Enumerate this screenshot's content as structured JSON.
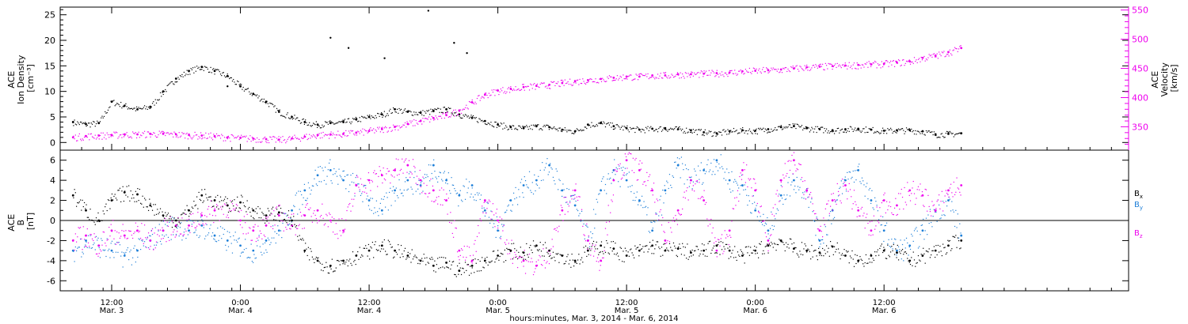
{
  "colors": {
    "black": "#000000",
    "magenta": "#ee00ee",
    "blue": "#1e7fd8"
  },
  "chart_data": [
    {
      "type": "scatter",
      "panel": "top",
      "left_axis_label": [
        "ACE",
        "Ion Density",
        "[cm⁻³]"
      ],
      "right_axis_label": [
        "ACE",
        "Velocity",
        "[km/s]"
      ],
      "ylim_left": [
        -1.5,
        26.5
      ],
      "ylim_right": [
        310,
        555
      ],
      "yticks_left": [
        "0",
        "5",
        "10",
        "15",
        "20",
        "25"
      ],
      "yticks_right": [
        "350",
        "400",
        "450",
        "500",
        "550"
      ],
      "series": [
        {
          "axis": "left",
          "color": "black",
          "x": [
            2.85,
            2.9,
            2.95,
            3.0,
            3.05,
            3.1,
            3.15,
            3.2,
            3.25,
            3.3,
            3.35,
            3.4,
            3.45,
            3.5,
            3.55,
            3.6,
            3.65,
            3.7,
            3.75,
            3.8,
            3.85,
            3.9,
            3.95,
            4.0,
            4.05,
            4.1,
            4.15,
            4.2,
            4.25,
            4.3,
            4.35,
            4.4,
            4.45,
            4.5,
            4.55,
            4.6,
            4.65,
            4.7,
            4.75,
            4.8,
            4.85,
            4.9,
            4.95,
            5.0,
            5.05,
            5.1,
            5.15,
            5.2,
            5.25,
            5.3,
            5.35,
            5.4,
            5.45,
            5.5,
            5.55,
            5.6,
            5.65,
            5.7,
            5.75,
            5.8,
            5.85,
            5.9,
            5.95,
            6.0,
            6.05,
            6.1,
            6.15,
            6.2,
            6.25,
            6.3
          ],
          "y": [
            4.0,
            3.6,
            3.8,
            8.0,
            7.2,
            6.5,
            7.0,
            10.0,
            12.5,
            14.0,
            14.8,
            14.0,
            13.0,
            11.0,
            9.5,
            8.0,
            6.0,
            5.0,
            4.0,
            3.5,
            3.8,
            4.0,
            4.5,
            5.0,
            5.5,
            6.5,
            6.0,
            5.8,
            6.2,
            6.5,
            5.5,
            4.8,
            4.2,
            3.5,
            3.0,
            2.8,
            3.2,
            3.0,
            2.5,
            2.2,
            3.5,
            3.8,
            3.2,
            2.8,
            2.5,
            2.7,
            2.8,
            2.6,
            2.4,
            2.0,
            1.8,
            2.2,
            2.4,
            2.3,
            2.6,
            3.0,
            3.2,
            2.8,
            2.6,
            2.4,
            2.6,
            2.7,
            2.5,
            2.3,
            2.4,
            2.4,
            2.2,
            1.6,
            1.7,
            1.8
          ]
        },
        {
          "axis": "right",
          "color": "magenta",
          "x": [
            2.85,
            2.9,
            2.95,
            3.0,
            3.05,
            3.1,
            3.15,
            3.2,
            3.25,
            3.3,
            3.35,
            3.4,
            3.45,
            3.5,
            3.55,
            3.6,
            3.65,
            3.7,
            3.75,
            3.8,
            3.85,
            3.9,
            3.95,
            4.0,
            4.05,
            4.1,
            4.15,
            4.2,
            4.25,
            4.3,
            4.35,
            4.4,
            4.45,
            4.5,
            4.55,
            4.6,
            4.65,
            4.7,
            4.75,
            4.8,
            4.85,
            4.9,
            4.95,
            5.0,
            5.05,
            5.1,
            5.15,
            5.2,
            5.25,
            5.3,
            5.35,
            5.4,
            5.45,
            5.5,
            5.55,
            5.6,
            5.65,
            5.7,
            5.75,
            5.8,
            5.85,
            5.9,
            5.95,
            6.0,
            6.05,
            6.1,
            6.15,
            6.2,
            6.25,
            6.3
          ],
          "y": [
            332,
            334,
            335,
            336,
            337,
            337,
            338,
            338,
            337,
            336,
            335,
            334,
            332,
            331,
            330,
            329,
            328,
            330,
            333,
            336,
            337,
            338,
            340,
            343,
            346,
            350,
            355,
            360,
            365,
            370,
            378,
            392,
            405,
            412,
            415,
            418,
            420,
            422,
            425,
            428,
            430,
            432,
            434,
            436,
            436,
            438,
            438,
            440,
            440,
            441,
            442,
            443,
            445,
            446,
            447,
            448,
            450,
            452,
            453,
            454,
            455,
            456,
            457,
            458,
            460,
            462,
            468,
            472,
            478,
            485
          ]
        }
      ],
      "outliers": [
        {
          "x": 3.85,
          "y": 20.5
        },
        {
          "x": 3.92,
          "y": 18.5
        },
        {
          "x": 4.23,
          "y": 25.8
        },
        {
          "x": 4.33,
          "y": 19.5
        },
        {
          "x": 4.38,
          "y": 17.5
        },
        {
          "x": 4.06,
          "y": 16.5
        },
        {
          "x": 3.45,
          "y": 11.0
        }
      ]
    },
    {
      "type": "scatter",
      "panel": "bottom",
      "left_axis_label": [
        "ACE",
        "B",
        "[nT]"
      ],
      "ylim": [
        -7,
        7
      ],
      "yticks": [
        "-6",
        "-4",
        "-2",
        "0",
        "2",
        "4",
        "6"
      ],
      "legend": [
        "B",
        "B",
        "B"
      ],
      "legend_subscripts": [
        "x",
        "y",
        "z"
      ],
      "series": [
        {
          "name_sub": "x",
          "color": "black",
          "x": [
            2.85,
            2.9,
            2.95,
            3.0,
            3.05,
            3.1,
            3.15,
            3.2,
            3.25,
            3.3,
            3.35,
            3.4,
            3.45,
            3.5,
            3.55,
            3.6,
            3.65,
            3.7,
            3.75,
            3.8,
            3.85,
            3.9,
            3.95,
            4.0,
            4.05,
            4.1,
            4.15,
            4.2,
            4.25,
            4.3,
            4.35,
            4.4,
            4.45,
            4.5,
            4.55,
            4.6,
            4.65,
            4.7,
            4.75,
            4.8,
            4.85,
            4.9,
            4.95,
            5.0,
            5.05,
            5.1,
            5.15,
            5.2,
            5.25,
            5.3,
            5.35,
            5.4,
            5.45,
            5.5,
            5.55,
            5.6,
            5.65,
            5.7,
            5.75,
            5.8,
            5.85,
            5.9,
            5.95,
            6.0,
            6.05,
            6.1,
            6.15,
            6.2,
            6.25,
            6.3
          ],
          "y": [
            2.5,
            1.0,
            0.0,
            2.0,
            2.8,
            2.6,
            1.5,
            0.5,
            0.0,
            1.0,
            2.5,
            2.0,
            1.5,
            1.8,
            1.0,
            0.5,
            0.8,
            0.0,
            -3.0,
            -4.0,
            -4.5,
            -4.0,
            -3.5,
            -3.0,
            -2.5,
            -3.0,
            -3.5,
            -4.0,
            -4.5,
            -4.2,
            -5.0,
            -4.5,
            -4.0,
            -3.5,
            -3.0,
            -3.2,
            -2.5,
            -3.0,
            -3.5,
            -4.0,
            -3.0,
            -2.5,
            -2.8,
            -3.5,
            -3.0,
            -2.5,
            -3.0,
            -2.8,
            -3.2,
            -3.0,
            -2.5,
            -3.0,
            -3.5,
            -3.0,
            -2.5,
            -2.0,
            -2.8,
            -3.0,
            -3.2,
            -2.6,
            -3.5,
            -4.0,
            -3.5,
            -3.0,
            -3.2,
            -4.0,
            -3.5,
            -3.0,
            -2.5,
            -2.0
          ]
        },
        {
          "name_sub": "y",
          "color": "blue",
          "x": [
            2.85,
            2.9,
            2.95,
            3.0,
            3.05,
            3.1,
            3.15,
            3.2,
            3.25,
            3.3,
            3.35,
            3.4,
            3.45,
            3.5,
            3.55,
            3.6,
            3.65,
            3.7,
            3.75,
            3.8,
            3.85,
            3.9,
            3.95,
            4.0,
            4.05,
            4.1,
            4.15,
            4.2,
            4.25,
            4.3,
            4.35,
            4.4,
            4.45,
            4.5,
            4.55,
            4.6,
            4.65,
            4.7,
            4.75,
            4.8,
            4.85,
            4.9,
            4.95,
            5.0,
            5.05,
            5.1,
            5.15,
            5.2,
            5.25,
            5.3,
            5.35,
            5.4,
            5.45,
            5.5,
            5.55,
            5.6,
            5.65,
            5.7,
            5.75,
            5.8,
            5.85,
            5.9,
            5.95,
            6.0,
            6.05,
            6.1,
            6.15,
            6.2,
            6.25,
            6.3
          ],
          "y": [
            -3.0,
            -2.0,
            -2.5,
            -3.0,
            -3.5,
            -3.0,
            -2.0,
            -1.0,
            -0.5,
            -1.0,
            -0.5,
            -1.5,
            -2.0,
            -2.5,
            -3.0,
            -2.0,
            -1.0,
            1.0,
            3.0,
            4.5,
            5.0,
            4.0,
            3.5,
            2.0,
            1.0,
            3.0,
            4.0,
            3.5,
            5.5,
            4.0,
            2.5,
            3.5,
            1.0,
            -1.0,
            2.0,
            3.5,
            4.0,
            5.5,
            3.0,
            1.5,
            -2.0,
            3.0,
            5.0,
            4.0,
            2.0,
            -1.0,
            3.0,
            5.5,
            4.0,
            5.0,
            6.0,
            4.0,
            3.5,
            1.0,
            -1.0,
            2.5,
            4.0,
            3.0,
            -2.0,
            1.0,
            4.0,
            5.0,
            2.0,
            -1.0,
            -3.0,
            -2.5,
            -1.0,
            1.0,
            2.0,
            -1.5
          ]
        },
        {
          "name_sub": "z",
          "color": "magenta",
          "x": [
            2.85,
            2.9,
            2.95,
            3.0,
            3.05,
            3.1,
            3.15,
            3.2,
            3.25,
            3.3,
            3.35,
            3.4,
            3.45,
            3.5,
            3.55,
            3.6,
            3.65,
            3.7,
            3.75,
            3.8,
            3.85,
            3.9,
            3.95,
            4.0,
            4.05,
            4.1,
            4.15,
            4.2,
            4.25,
            4.3,
            4.35,
            4.4,
            4.45,
            4.5,
            4.55,
            4.6,
            4.65,
            4.7,
            4.75,
            4.8,
            4.85,
            4.9,
            4.95,
            5.0,
            5.05,
            5.1,
            5.15,
            5.2,
            5.25,
            5.3,
            5.35,
            5.4,
            5.45,
            5.5,
            5.55,
            5.6,
            5.65,
            5.7,
            5.75,
            5.8,
            5.85,
            5.9,
            5.95,
            6.0,
            6.05,
            6.1,
            6.15,
            6.2,
            6.25,
            6.3
          ],
          "y": [
            -2.0,
            -1.5,
            -2.5,
            -1.0,
            -1.5,
            -1.0,
            -2.0,
            -1.0,
            -0.5,
            -0.5,
            0.5,
            1.0,
            1.5,
            0.0,
            -1.0,
            -0.5,
            0.5,
            -0.5,
            0.5,
            1.0,
            0.0,
            -1.0,
            3.5,
            4.0,
            4.5,
            5.0,
            5.5,
            4.0,
            3.0,
            2.0,
            -3.0,
            -4.0,
            2.0,
            0.0,
            -3.0,
            -4.0,
            -4.5,
            -3.0,
            1.0,
            3.0,
            -2.0,
            -4.0,
            4.0,
            6.0,
            5.0,
            3.0,
            -2.0,
            1.0,
            4.0,
            2.0,
            -3.0,
            -1.0,
            5.0,
            3.0,
            -2.0,
            4.0,
            6.0,
            3.0,
            -1.0,
            2.0,
            3.5,
            1.0,
            -1.0,
            2.0,
            1.5,
            3.0,
            2.5,
            1.0,
            3.0,
            3.5
          ]
        }
      ]
    }
  ],
  "x_axis": {
    "xlim": [
      2.8,
      6.95
    ],
    "major_ticks": [
      {
        "x": 3.0,
        "time": "12:00",
        "date": "Mar. 3"
      },
      {
        "x": 3.5,
        "time": "0:00",
        "date": "Mar. 4"
      },
      {
        "x": 4.0,
        "time": "12:00",
        "date": "Mar. 4"
      },
      {
        "x": 4.5,
        "time": "0:00",
        "date": "Mar. 5"
      },
      {
        "x": 5.0,
        "time": "12:00",
        "date": "Mar. 5"
      },
      {
        "x": 5.5,
        "time": "0:00",
        "date": "Mar. 6"
      },
      {
        "x": 6.0,
        "time": "12:00",
        "date": "Mar. 6"
      }
    ],
    "label": "hours:minutes, Mar.  3, 2014 - Mar.  6, 2014"
  }
}
